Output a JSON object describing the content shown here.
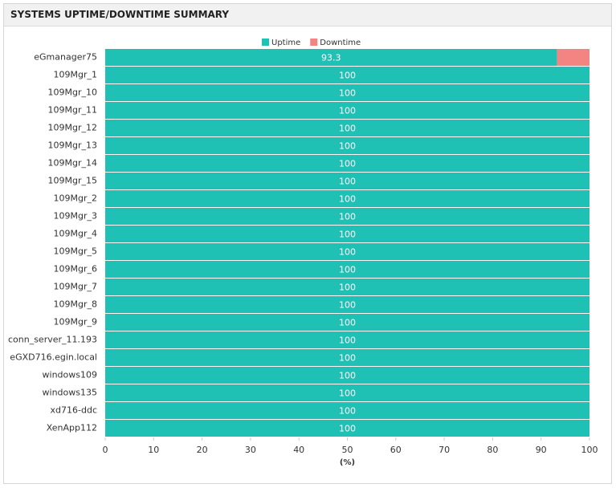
{
  "chart_data": {
    "type": "stacked-bar-horizontal",
    "title": "SYSTEMS UPTIME/DOWNTIME SUMMARY",
    "categories": [
      "eGmanager75",
      "109Mgr_1",
      "109Mgr_10",
      "109Mgr_11",
      "109Mgr_12",
      "109Mgr_13",
      "109Mgr_14",
      "109Mgr_15",
      "109Mgr_2",
      "109Mgr_3",
      "109Mgr_4",
      "109Mgr_5",
      "109Mgr_6",
      "109Mgr_7",
      "109Mgr_8",
      "109Mgr_9",
      "conn_server_11.193",
      "eGXD716.egin.local",
      "windows109",
      "windows135",
      "xd716-ddc",
      "XenApp112"
    ],
    "series": [
      {
        "name": "Uptime",
        "color": "#1fc1b5",
        "data_labels": true,
        "values": [
          93.3,
          100,
          100,
          100,
          100,
          100,
          100,
          100,
          100,
          100,
          100,
          100,
          100,
          100,
          100,
          100,
          100,
          100,
          100,
          100,
          100,
          100
        ]
      },
      {
        "name": "Downtime",
        "color": "#f28482",
        "data_labels": false,
        "values": [
          6.7,
          0,
          0,
          0,
          0,
          0,
          0,
          0,
          0,
          0,
          0,
          0,
          0,
          0,
          0,
          0,
          0,
          0,
          0,
          0,
          0,
          0
        ]
      }
    ],
    "xlim": [
      0,
      100
    ],
    "xticks": [
      0,
      10,
      20,
      30,
      40,
      50,
      60,
      70,
      80,
      90,
      100
    ],
    "xlabel": "(%)",
    "legend": "top"
  }
}
